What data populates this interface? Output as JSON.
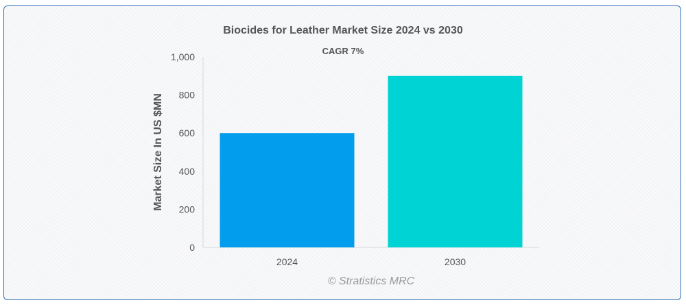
{
  "chart_data": {
    "type": "bar",
    "title": "Biocides for Leather Market Size 2024 vs 2030",
    "subtitle": "CAGR 7%",
    "xlabel": "",
    "ylabel": "Market Size In US $MN",
    "categories": [
      "2024",
      "2030"
    ],
    "values": [
      600,
      900
    ],
    "colors": [
      "#039ded",
      "#00d3d3"
    ],
    "ylim": [
      0,
      1000
    ],
    "yticks": [
      0,
      200,
      400,
      600,
      800,
      1000
    ],
    "ytick_labels": [
      "0",
      "200",
      "400",
      "600",
      "800",
      "1,000"
    ],
    "grid": false,
    "legend": "none"
  },
  "credit": "© Stratistics MRC"
}
